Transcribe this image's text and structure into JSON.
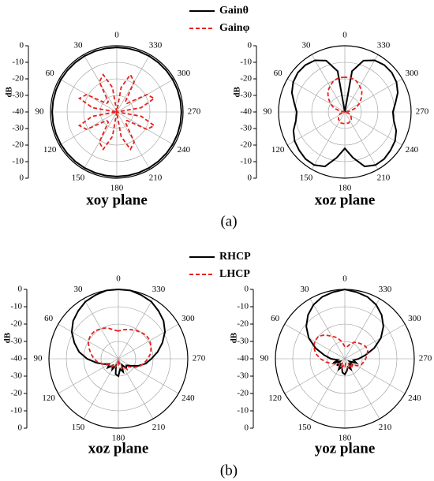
{
  "chart_data": [
    {
      "type": "polar",
      "title": "xoy plane",
      "ylabel": "dB",
      "ylim": [
        -40,
        0
      ],
      "yticks": [
        -40,
        -30,
        -20,
        -10,
        0
      ],
      "thetaticks": [
        0,
        30,
        60,
        90,
        120,
        150,
        180,
        210,
        240,
        270,
        300,
        330
      ],
      "theta": [
        0,
        10,
        20,
        30,
        40,
        50,
        60,
        70,
        80,
        90,
        100,
        110,
        120,
        130,
        140,
        150,
        160,
        170,
        180,
        190,
        200,
        210,
        220,
        230,
        240,
        250,
        260,
        270,
        280,
        290,
        300,
        310,
        320,
        330,
        340,
        350
      ],
      "series": [
        {
          "name": "Gainθ",
          "color": "#000000",
          "dash": false,
          "values": [
            -1,
            -1,
            -1,
            -1,
            -1,
            -1,
            -1,
            -1,
            -1,
            -1,
            -1,
            -1,
            -1,
            -1,
            -1,
            -1,
            -1,
            -1,
            -1,
            -1,
            -1,
            -1,
            -1,
            -1,
            -1,
            -1,
            -1,
            -1,
            -1,
            -1,
            -1,
            -1,
            -1,
            -1,
            -1,
            -1
          ]
        },
        {
          "name": "Gainφ",
          "color": "#e8201c",
          "dash": true,
          "values": [
            -40,
            -25,
            -16,
            -19,
            -32,
            -32,
            -19,
            -16,
            -25,
            -40,
            -25,
            -16,
            -19,
            -32,
            -32,
            -19,
            -16,
            -25,
            -40,
            -25,
            -16,
            -19,
            -32,
            -32,
            -19,
            -16,
            -25,
            -40,
            -25,
            -16,
            -19,
            -32,
            -32,
            -19,
            -16,
            -25
          ]
        }
      ]
    },
    {
      "type": "polar",
      "title": "xoz plane",
      "ylabel": "dB",
      "ylim": [
        -40,
        0
      ],
      "yticks": [
        -40,
        -30,
        -20,
        -10,
        0
      ],
      "thetaticks": [
        0,
        30,
        60,
        90,
        120,
        150,
        180,
        210,
        240,
        270,
        300,
        330
      ],
      "theta": [
        0,
        10,
        20,
        30,
        40,
        50,
        60,
        70,
        80,
        90,
        100,
        110,
        120,
        130,
        140,
        150,
        160,
        170,
        180,
        190,
        200,
        210,
        220,
        230,
        240,
        250,
        260,
        270,
        280,
        290,
        300,
        310,
        320,
        330,
        340,
        350
      ],
      "series": [
        {
          "color": "#000000",
          "dash": false,
          "values": [
            -40,
            -15,
            -7,
            -4,
            -3,
            -3,
            -4,
            -6,
            -9,
            -11,
            -10,
            -7,
            -5,
            -4,
            -3,
            -3,
            -5,
            -12,
            -18,
            -12,
            -5,
            -3,
            -3,
            -4,
            -5,
            -7,
            -10,
            -11,
            -9,
            -6,
            -4,
            -3,
            -3,
            -4,
            -7,
            -15
          ]
        },
        {
          "color": "#e8201c",
          "dash": true,
          "values": [
            -19,
            -19,
            -20,
            -22,
            -24,
            -27,
            -30,
            -33,
            -37,
            -40,
            -39,
            -37,
            -36,
            -35,
            -34,
            -34,
            -33,
            -33,
            -33,
            -33,
            -33,
            -34,
            -34,
            -35,
            -36,
            -37,
            -39,
            -40,
            -37,
            -33,
            -30,
            -27,
            -24,
            -22,
            -20,
            -19
          ]
        }
      ]
    },
    {
      "type": "polar",
      "title": "xoz plane",
      "ylabel": "dB",
      "ylim": [
        -40,
        0
      ],
      "yticks": [
        -40,
        -30,
        -20,
        -10,
        0
      ],
      "thetaticks": [
        0,
        30,
        60,
        90,
        120,
        150,
        180,
        210,
        240,
        270,
        300,
        330
      ],
      "theta": [
        0,
        10,
        20,
        30,
        40,
        50,
        60,
        70,
        80,
        90,
        100,
        110,
        120,
        130,
        140,
        150,
        160,
        170,
        180,
        190,
        200,
        210,
        220,
        230,
        240,
        250,
        260,
        270,
        280,
        290,
        300,
        310,
        320,
        330,
        340,
        350
      ],
      "series": [
        {
          "name": "RHCP",
          "color": "#000000",
          "dash": false,
          "values": [
            0,
            0,
            -1,
            -2,
            -4,
            -6,
            -9,
            -13,
            -17,
            -22,
            -27,
            -31,
            -34,
            -32,
            -35,
            -33,
            -36,
            -31,
            -30,
            -34,
            -32,
            -36,
            -33,
            -34,
            -32,
            -28,
            -24,
            -21,
            -17,
            -13,
            -9,
            -6,
            -4,
            -2,
            -1,
            0
          ]
        },
        {
          "name": "LHCP",
          "color": "#e8201c",
          "dash": true,
          "values": [
            -24,
            -23,
            -21,
            -20,
            -19,
            -19,
            -20,
            -22,
            -24,
            -26,
            -28,
            -31,
            -33,
            -35,
            -34,
            -36,
            -35,
            -38,
            -36,
            -38,
            -34,
            -35,
            -32,
            -33,
            -30,
            -27,
            -25,
            -23,
            -21,
            -20,
            -19,
            -19,
            -20,
            -21,
            -22,
            -23
          ]
        }
      ]
    },
    {
      "type": "polar",
      "title": "yoz plane",
      "ylabel": "dB",
      "ylim": [
        -40,
        0
      ],
      "yticks": [
        -40,
        -30,
        -20,
        -10,
        0
      ],
      "thetaticks": [
        0,
        30,
        60,
        90,
        120,
        150,
        180,
        210,
        240,
        270,
        300,
        330
      ],
      "theta": [
        0,
        10,
        20,
        30,
        40,
        50,
        60,
        70,
        80,
        90,
        100,
        110,
        120,
        130,
        140,
        150,
        160,
        170,
        180,
        190,
        200,
        210,
        220,
        230,
        240,
        250,
        260,
        270,
        280,
        290,
        300,
        310,
        320,
        330,
        340,
        350
      ],
      "series": [
        {
          "color": "#000000",
          "dash": false,
          "values": [
            0,
            -1,
            -2,
            -4,
            -7,
            -11,
            -16,
            -22,
            -28,
            -32,
            -36,
            -33,
            -37,
            -34,
            -36,
            -33,
            -35,
            -32,
            -31,
            -33,
            -35,
            -33,
            -36,
            -34,
            -37,
            -33,
            -35,
            -32,
            -28,
            -22,
            -16,
            -11,
            -7,
            -4,
            -2,
            -1
          ]
        },
        {
          "color": "#e8201c",
          "dash": true,
          "values": [
            -33,
            -30,
            -27,
            -25,
            -22,
            -20,
            -20,
            -21,
            -23,
            -26,
            -29,
            -32,
            -34,
            -36,
            -35,
            -37,
            -34,
            -36,
            -35,
            -37,
            -34,
            -36,
            -33,
            -35,
            -32,
            -30,
            -29,
            -28,
            -27,
            -26,
            -26,
            -27,
            -28,
            -29,
            -31,
            -33
          ]
        }
      ]
    }
  ],
  "captions": [
    "(a)",
    "(b)"
  ]
}
